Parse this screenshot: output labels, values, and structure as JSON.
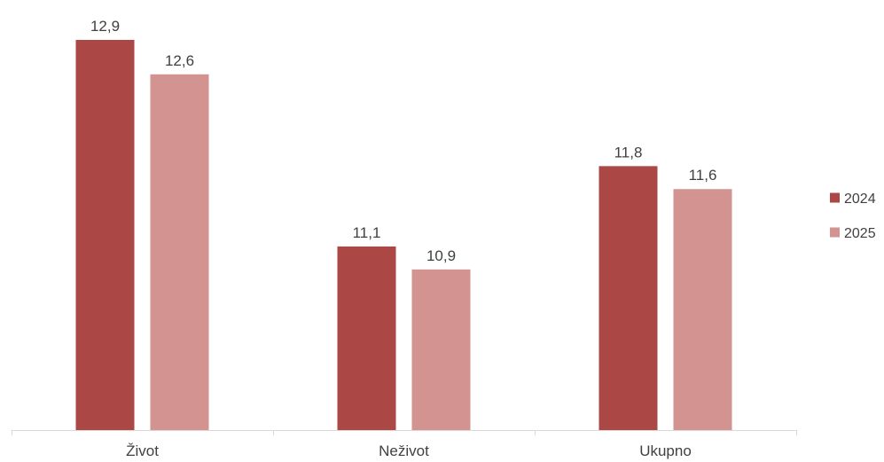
{
  "chart_data": {
    "type": "bar",
    "categories": [
      "Život",
      "Neživot",
      "Ukupno"
    ],
    "series": [
      {
        "name": "2024",
        "values": [
          12.9,
          11.1,
          11.8
        ],
        "labels": [
          "12,9",
          "11,1",
          "11,8"
        ],
        "color": "#AB4744"
      },
      {
        "name": "2025",
        "values": [
          12.6,
          10.9,
          11.6
        ],
        "labels": [
          "12,6",
          "10,9",
          "11,6"
        ],
        "color": "#D29391"
      }
    ],
    "ylim": [
      9.5,
      12.9
    ],
    "title": "",
    "xlabel": "",
    "ylabel": "",
    "grid": false,
    "legend_position": "right",
    "axis_color": "#D9D9D9",
    "text_color": "#404040"
  }
}
